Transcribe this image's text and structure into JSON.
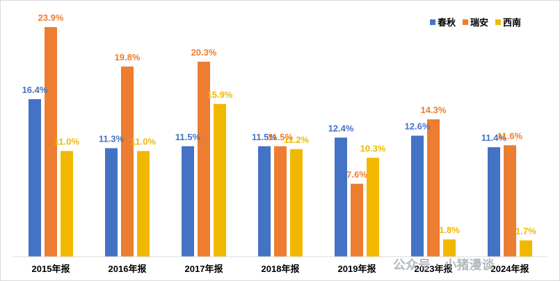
{
  "chart_data": {
    "type": "bar",
    "categories": [
      "2015年报",
      "2016年报",
      "2017年报",
      "2018年报",
      "2019年报",
      "2023年报",
      "2024年报"
    ],
    "series": [
      {
        "name": "春秋",
        "color": "#4472C4",
        "values": [
          16.4,
          11.3,
          11.5,
          11.5,
          12.4,
          12.6,
          11.4
        ],
        "labels": [
          "16.4%",
          "11.3%",
          "11.5%",
          "11.5%",
          "12.4%",
          "12.6%",
          "11.4%"
        ]
      },
      {
        "name": "瑞安",
        "color": "#ED7D31",
        "values": [
          23.9,
          19.8,
          20.3,
          11.5,
          7.6,
          14.3,
          11.6
        ],
        "labels": [
          "23.9%",
          "19.8%",
          "20.3%",
          "11.5%",
          "7.6%",
          "14.3%",
          "11.6%"
        ]
      },
      {
        "name": "西南",
        "color": "#F2B800",
        "values": [
          11.0,
          11.0,
          15.9,
          11.2,
          10.3,
          1.8,
          1.7
        ],
        "labels": [
          "11.0%",
          "11.0%",
          "15.9%",
          "11.2%",
          "10.3%",
          "1.8%",
          "1.7%"
        ]
      }
    ],
    "ylim": [
      0,
      26
    ],
    "legend_position": "top-right",
    "grid": false
  },
  "watermark": "公众号 · 小猪漫谈"
}
